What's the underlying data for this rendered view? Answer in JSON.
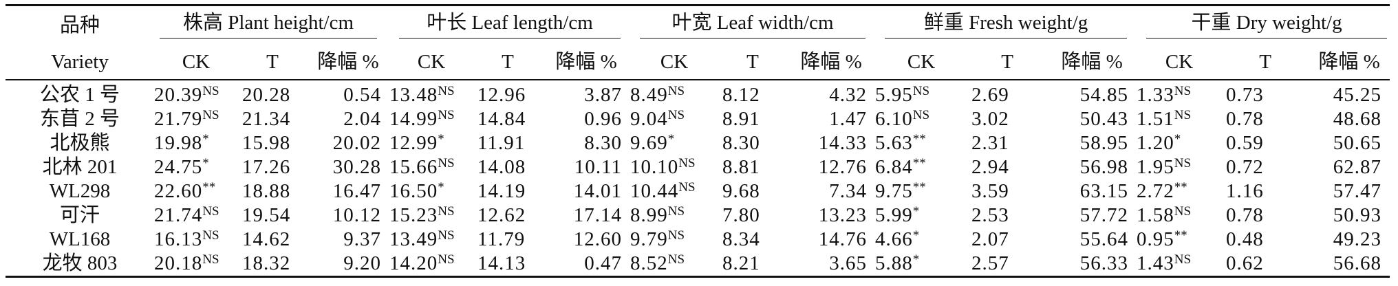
{
  "header": {
    "variety_cn": "品种",
    "variety_en": "Variety",
    "groups": [
      "株高 Plant height/cm",
      "叶长 Leaf length/cm",
      "叶宽 Leaf width/cm",
      "鲜重 Fresh weight/g",
      "干重 Dry weight/g"
    ],
    "sub_ck": "CK",
    "sub_t": "T",
    "sub_decline": "降幅 %"
  },
  "rows": [
    {
      "variety": "公农 1 号",
      "cells": [
        {
          "ck": "20.39",
          "sig": "NS",
          "t": "20.28",
          "d": "0.54"
        },
        {
          "ck": "13.48",
          "sig": "NS",
          "t": "12.96",
          "d": "3.87"
        },
        {
          "ck": "8.49",
          "sig": "NS",
          "t": "8.12",
          "d": "4.32"
        },
        {
          "ck": "5.95",
          "sig": "NS",
          "t": "2.69",
          "d": "54.85"
        },
        {
          "ck": "1.33",
          "sig": "NS",
          "t": "0.73",
          "d": "45.25"
        }
      ]
    },
    {
      "variety": "东苜 2 号",
      "cells": [
        {
          "ck": "21.79",
          "sig": "NS",
          "t": "21.34",
          "d": "2.04"
        },
        {
          "ck": "14.99",
          "sig": "NS",
          "t": "14.84",
          "d": "0.96"
        },
        {
          "ck": "9.04",
          "sig": "NS",
          "t": "8.91",
          "d": "1.47"
        },
        {
          "ck": "6.10",
          "sig": "NS",
          "t": "3.02",
          "d": "50.43"
        },
        {
          "ck": "1.51",
          "sig": "NS",
          "t": "0.78",
          "d": "48.68"
        }
      ]
    },
    {
      "variety": "北极熊",
      "cells": [
        {
          "ck": "19.98",
          "sig": "*",
          "t": "15.98",
          "d": "20.02"
        },
        {
          "ck": "12.99",
          "sig": "*",
          "t": "11.91",
          "d": "8.30"
        },
        {
          "ck": "9.69",
          "sig": "*",
          "t": "8.30",
          "d": "14.33"
        },
        {
          "ck": "5.63",
          "sig": "**",
          "t": "2.31",
          "d": "58.95"
        },
        {
          "ck": "1.20",
          "sig": "*",
          "t": "0.59",
          "d": "50.65"
        }
      ]
    },
    {
      "variety": "北林 201",
      "cells": [
        {
          "ck": "24.75",
          "sig": "*",
          "t": "17.26",
          "d": "30.28"
        },
        {
          "ck": "15.66",
          "sig": "NS",
          "t": "14.08",
          "d": "10.11"
        },
        {
          "ck": "10.10",
          "sig": "NS",
          "t": "8.81",
          "d": "12.76"
        },
        {
          "ck": "6.84",
          "sig": "**",
          "t": "2.94",
          "d": "56.98"
        },
        {
          "ck": "1.95",
          "sig": "NS",
          "t": "0.72",
          "d": "62.87"
        }
      ]
    },
    {
      "variety": "WL298",
      "cells": [
        {
          "ck": "22.60",
          "sig": "**",
          "t": "18.88",
          "d": "16.47"
        },
        {
          "ck": "16.50",
          "sig": "*",
          "t": "14.19",
          "d": "14.01"
        },
        {
          "ck": "10.44",
          "sig": "NS",
          "t": "9.68",
          "d": "7.34"
        },
        {
          "ck": "9.75",
          "sig": "**",
          "t": "3.59",
          "d": "63.15"
        },
        {
          "ck": "2.72",
          "sig": "**",
          "t": "1.16",
          "d": "57.47"
        }
      ]
    },
    {
      "variety": "可汗",
      "cells": [
        {
          "ck": "21.74",
          "sig": "NS",
          "t": "19.54",
          "d": "10.12"
        },
        {
          "ck": "15.23",
          "sig": "NS",
          "t": "12.62",
          "d": "17.14"
        },
        {
          "ck": "8.99",
          "sig": "NS",
          "t": "7.80",
          "d": "13.23"
        },
        {
          "ck": "5.99",
          "sig": "*",
          "t": "2.53",
          "d": "57.72"
        },
        {
          "ck": "1.58",
          "sig": "NS",
          "t": "0.78",
          "d": "50.93"
        }
      ]
    },
    {
      "variety": "WL168",
      "cells": [
        {
          "ck": "16.13",
          "sig": "NS",
          "t": "14.62",
          "d": "9.37"
        },
        {
          "ck": "13.49",
          "sig": "NS",
          "t": "11.79",
          "d": "12.60"
        },
        {
          "ck": "9.79",
          "sig": "NS",
          "t": "8.34",
          "d": "14.76"
        },
        {
          "ck": "4.66",
          "sig": "*",
          "t": "2.07",
          "d": "55.64"
        },
        {
          "ck": "0.95",
          "sig": "**",
          "t": "0.48",
          "d": "49.23"
        }
      ]
    },
    {
      "variety": "龙牧 803",
      "cells": [
        {
          "ck": "20.18",
          "sig": "NS",
          "t": "18.32",
          "d": "9.20"
        },
        {
          "ck": "14.20",
          "sig": "NS",
          "t": "14.13",
          "d": "0.47"
        },
        {
          "ck": "8.52",
          "sig": "NS",
          "t": "8.21",
          "d": "3.65"
        },
        {
          "ck": "5.88",
          "sig": "*",
          "t": "2.57",
          "d": "56.33"
        },
        {
          "ck": "1.43",
          "sig": "NS",
          "t": "0.62",
          "d": "56.68"
        }
      ]
    }
  ]
}
